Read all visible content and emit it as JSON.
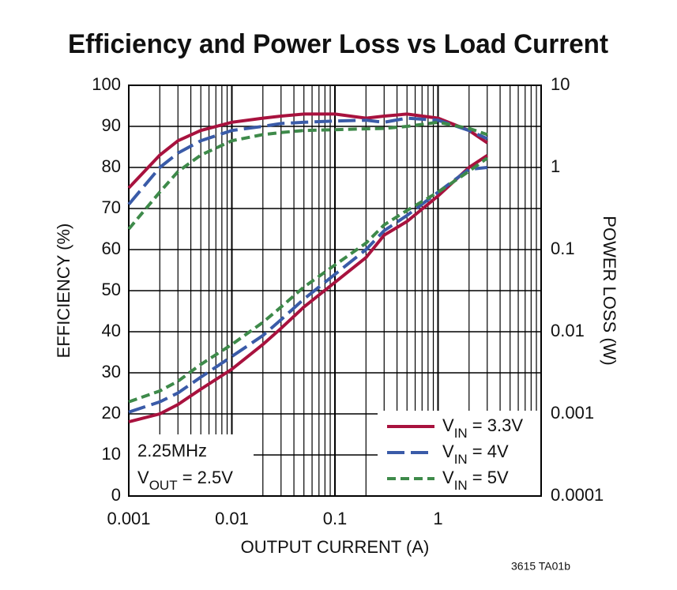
{
  "chart_data": {
    "type": "line",
    "title": "Efficiency and Power Loss vs Load Current",
    "xlabel": "OUTPUT CURRENT (A)",
    "ylabel": "EFFICIENCY (%)",
    "y2label": "POWER LOSS (W)",
    "annotations": [
      "2.25MHz",
      "VOUT = 2.5V"
    ],
    "footnote": "3615 TA01b",
    "xscale": "log",
    "y2scale": "log",
    "grid": true,
    "legend": "lower right",
    "xlim": [
      0.001,
      10
    ],
    "xticks": [
      0.001,
      0.01,
      0.1,
      1
    ],
    "ylim": [
      0,
      100
    ],
    "yticks": [
      0,
      10,
      20,
      30,
      40,
      50,
      60,
      70,
      80,
      90,
      100
    ],
    "y2lim": [
      0.0001,
      10
    ],
    "y2ticks": [
      0.0001,
      0.001,
      0.01,
      0.1,
      1,
      10
    ],
    "x": [
      0.001,
      0.002,
      0.003,
      0.005,
      0.01,
      0.02,
      0.03,
      0.05,
      0.1,
      0.2,
      0.3,
      0.5,
      1,
      2,
      3
    ],
    "series": [
      {
        "name": "VIN = 3.3V",
        "color": "#a8123e",
        "linestyle": "solid",
        "values": [
          75,
          83,
          86.5,
          89,
          91,
          92,
          92.5,
          93,
          93,
          92,
          92.5,
          93,
          92,
          89,
          86
        ]
      },
      {
        "name": "VIN = 4V",
        "color": "#3a5ba8",
        "linestyle": "dashed",
        "values": [
          71,
          80,
          83.5,
          86.5,
          89,
          90,
          90.7,
          91,
          91.3,
          91.5,
          91,
          92,
          91.5,
          89,
          87
        ]
      },
      {
        "name": "VIN = 5V",
        "color": "#3e8a4a",
        "linestyle": "dotted",
        "values": [
          65,
          74,
          79,
          83,
          86.5,
          88,
          88.5,
          89,
          89.2,
          89.4,
          89.5,
          90,
          91,
          89.5,
          88
        ]
      },
      {
        "name": "VIN = 3.3V",
        "color": "#a8123e",
        "linestyle": "solid",
        "axis": "y2",
        "values": [
          0.0008,
          0.001,
          0.0013,
          0.002,
          0.0035,
          0.007,
          0.011,
          0.02,
          0.04,
          0.08,
          0.15,
          0.22,
          0.45,
          1,
          1.4
        ]
      },
      {
        "name": "VIN = 4V",
        "color": "#3a5ba8",
        "linestyle": "dashed",
        "axis": "y2",
        "values": [
          0.00105,
          0.0014,
          0.0018,
          0.0028,
          0.005,
          0.009,
          0.014,
          0.025,
          0.05,
          0.1,
          0.17,
          0.26,
          0.5,
          0.95,
          1
        ]
      },
      {
        "name": "VIN = 5V",
        "color": "#3e8a4a",
        "linestyle": "dotted",
        "axis": "y2",
        "values": [
          0.0014,
          0.0019,
          0.0025,
          0.004,
          0.007,
          0.013,
          0.02,
          0.035,
          0.065,
          0.12,
          0.2,
          0.3,
          0.5,
          0.9,
          1.3
        ]
      }
    ]
  }
}
